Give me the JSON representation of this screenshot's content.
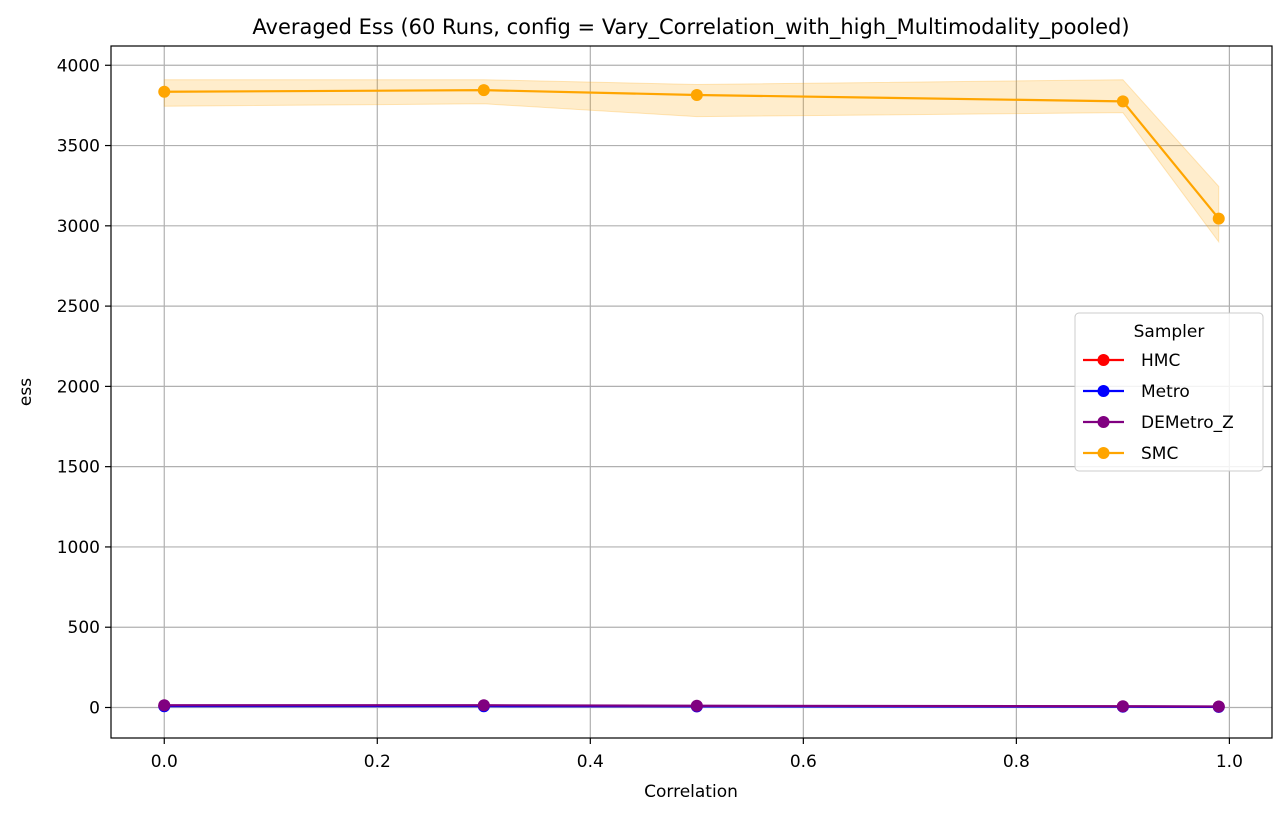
{
  "chart_data": {
    "type": "line",
    "title": "Averaged Ess (60 Runs, config = Vary_Correlation_with_high_Multimodality_pooled)",
    "xlabel": "Correlation",
    "ylabel": "ess",
    "xlim": [
      -0.05,
      1.04
    ],
    "ylim": [
      -190,
      4120
    ],
    "x_ticks": [
      0.0,
      0.2,
      0.4,
      0.6,
      0.8,
      1.0
    ],
    "x_tick_labels": [
      "0.0",
      "0.2",
      "0.4",
      "0.6",
      "0.8",
      "1.0"
    ],
    "y_ticks": [
      0,
      500,
      1000,
      1500,
      2000,
      2500,
      3000,
      3500,
      4000
    ],
    "y_tick_labels": [
      "0",
      "500",
      "1000",
      "1500",
      "2000",
      "2500",
      "3000",
      "3500",
      "4000"
    ],
    "grid": true,
    "legend": {
      "title": "Sampler",
      "position": "center-right"
    },
    "x": [
      0.0,
      0.3,
      0.5,
      0.9,
      0.99
    ],
    "series": [
      {
        "name": "HMC",
        "color": "#ff0000",
        "values": [
          10,
          10,
          8,
          6,
          5
        ]
      },
      {
        "name": "Metro",
        "color": "#0000ff",
        "values": [
          8,
          8,
          7,
          5,
          4
        ]
      },
      {
        "name": "DEMetro_Z",
        "color": "#800080",
        "values": [
          14,
          14,
          11,
          8,
          6
        ]
      },
      {
        "name": "SMC",
        "color": "#ffa500",
        "values": [
          3835,
          3845,
          3815,
          3775,
          3045
        ],
        "band_lower": [
          3745,
          3760,
          3680,
          3705,
          2900
        ],
        "band_upper": [
          3910,
          3910,
          3880,
          3910,
          3245
        ]
      }
    ]
  }
}
